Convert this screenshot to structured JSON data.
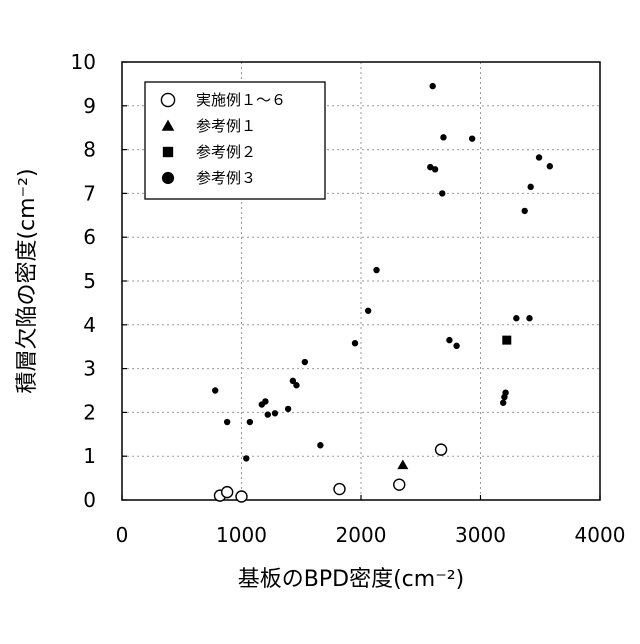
{
  "chart_data": {
    "type": "scatter",
    "xlabel": "基板のBPD密度(cm⁻²)",
    "ylabel": "積層欠陥の密度(cm⁻²)",
    "xlim": [
      0,
      4000
    ],
    "ylim": [
      0,
      10
    ],
    "x_ticks": [
      "0",
      "1000",
      "2000",
      "3000",
      "4000"
    ],
    "y_ticks": [
      "0",
      "1",
      "2",
      "3",
      "4",
      "5",
      "6",
      "7",
      "8",
      "9",
      "10"
    ],
    "grid": true,
    "legend_position": "top-left",
    "series": [
      {
        "name": "実施例１～６",
        "marker": "open-circle",
        "points": [
          [
            820,
            0.1
          ],
          [
            880,
            0.18
          ],
          [
            1000,
            0.08
          ],
          [
            1820,
            0.25
          ],
          [
            2320,
            0.35
          ],
          [
            2670,
            1.15
          ]
        ]
      },
      {
        "name": "参考例１",
        "marker": "triangle",
        "points": [
          [
            2350,
            0.8
          ]
        ]
      },
      {
        "name": "参考例２",
        "marker": "square",
        "points": [
          [
            3220,
            3.65
          ]
        ]
      },
      {
        "name": "参考例３",
        "marker": "filled-circle",
        "points": [
          [
            780,
            2.5
          ],
          [
            880,
            1.78
          ],
          [
            1040,
            0.95
          ],
          [
            1070,
            1.78
          ],
          [
            1170,
            2.18
          ],
          [
            1200,
            2.25
          ],
          [
            1220,
            1.95
          ],
          [
            1280,
            1.98
          ],
          [
            1390,
            2.08
          ],
          [
            1430,
            2.72
          ],
          [
            1460,
            2.62
          ],
          [
            1530,
            3.15
          ],
          [
            1660,
            1.25
          ],
          [
            1950,
            3.58
          ],
          [
            2060,
            4.32
          ],
          [
            2130,
            5.25
          ],
          [
            2600,
            9.45
          ],
          [
            2580,
            7.6
          ],
          [
            2620,
            7.55
          ],
          [
            2680,
            7.0
          ],
          [
            2690,
            8.28
          ],
          [
            2740,
            3.65
          ],
          [
            2800,
            3.52
          ],
          [
            2930,
            8.25
          ],
          [
            3190,
            2.22
          ],
          [
            3200,
            2.35
          ],
          [
            3210,
            2.45
          ],
          [
            3300,
            4.15
          ],
          [
            3370,
            6.6
          ],
          [
            3410,
            4.15
          ],
          [
            3420,
            7.15
          ],
          [
            3490,
            7.82
          ],
          [
            3580,
            7.62
          ]
        ]
      }
    ]
  }
}
